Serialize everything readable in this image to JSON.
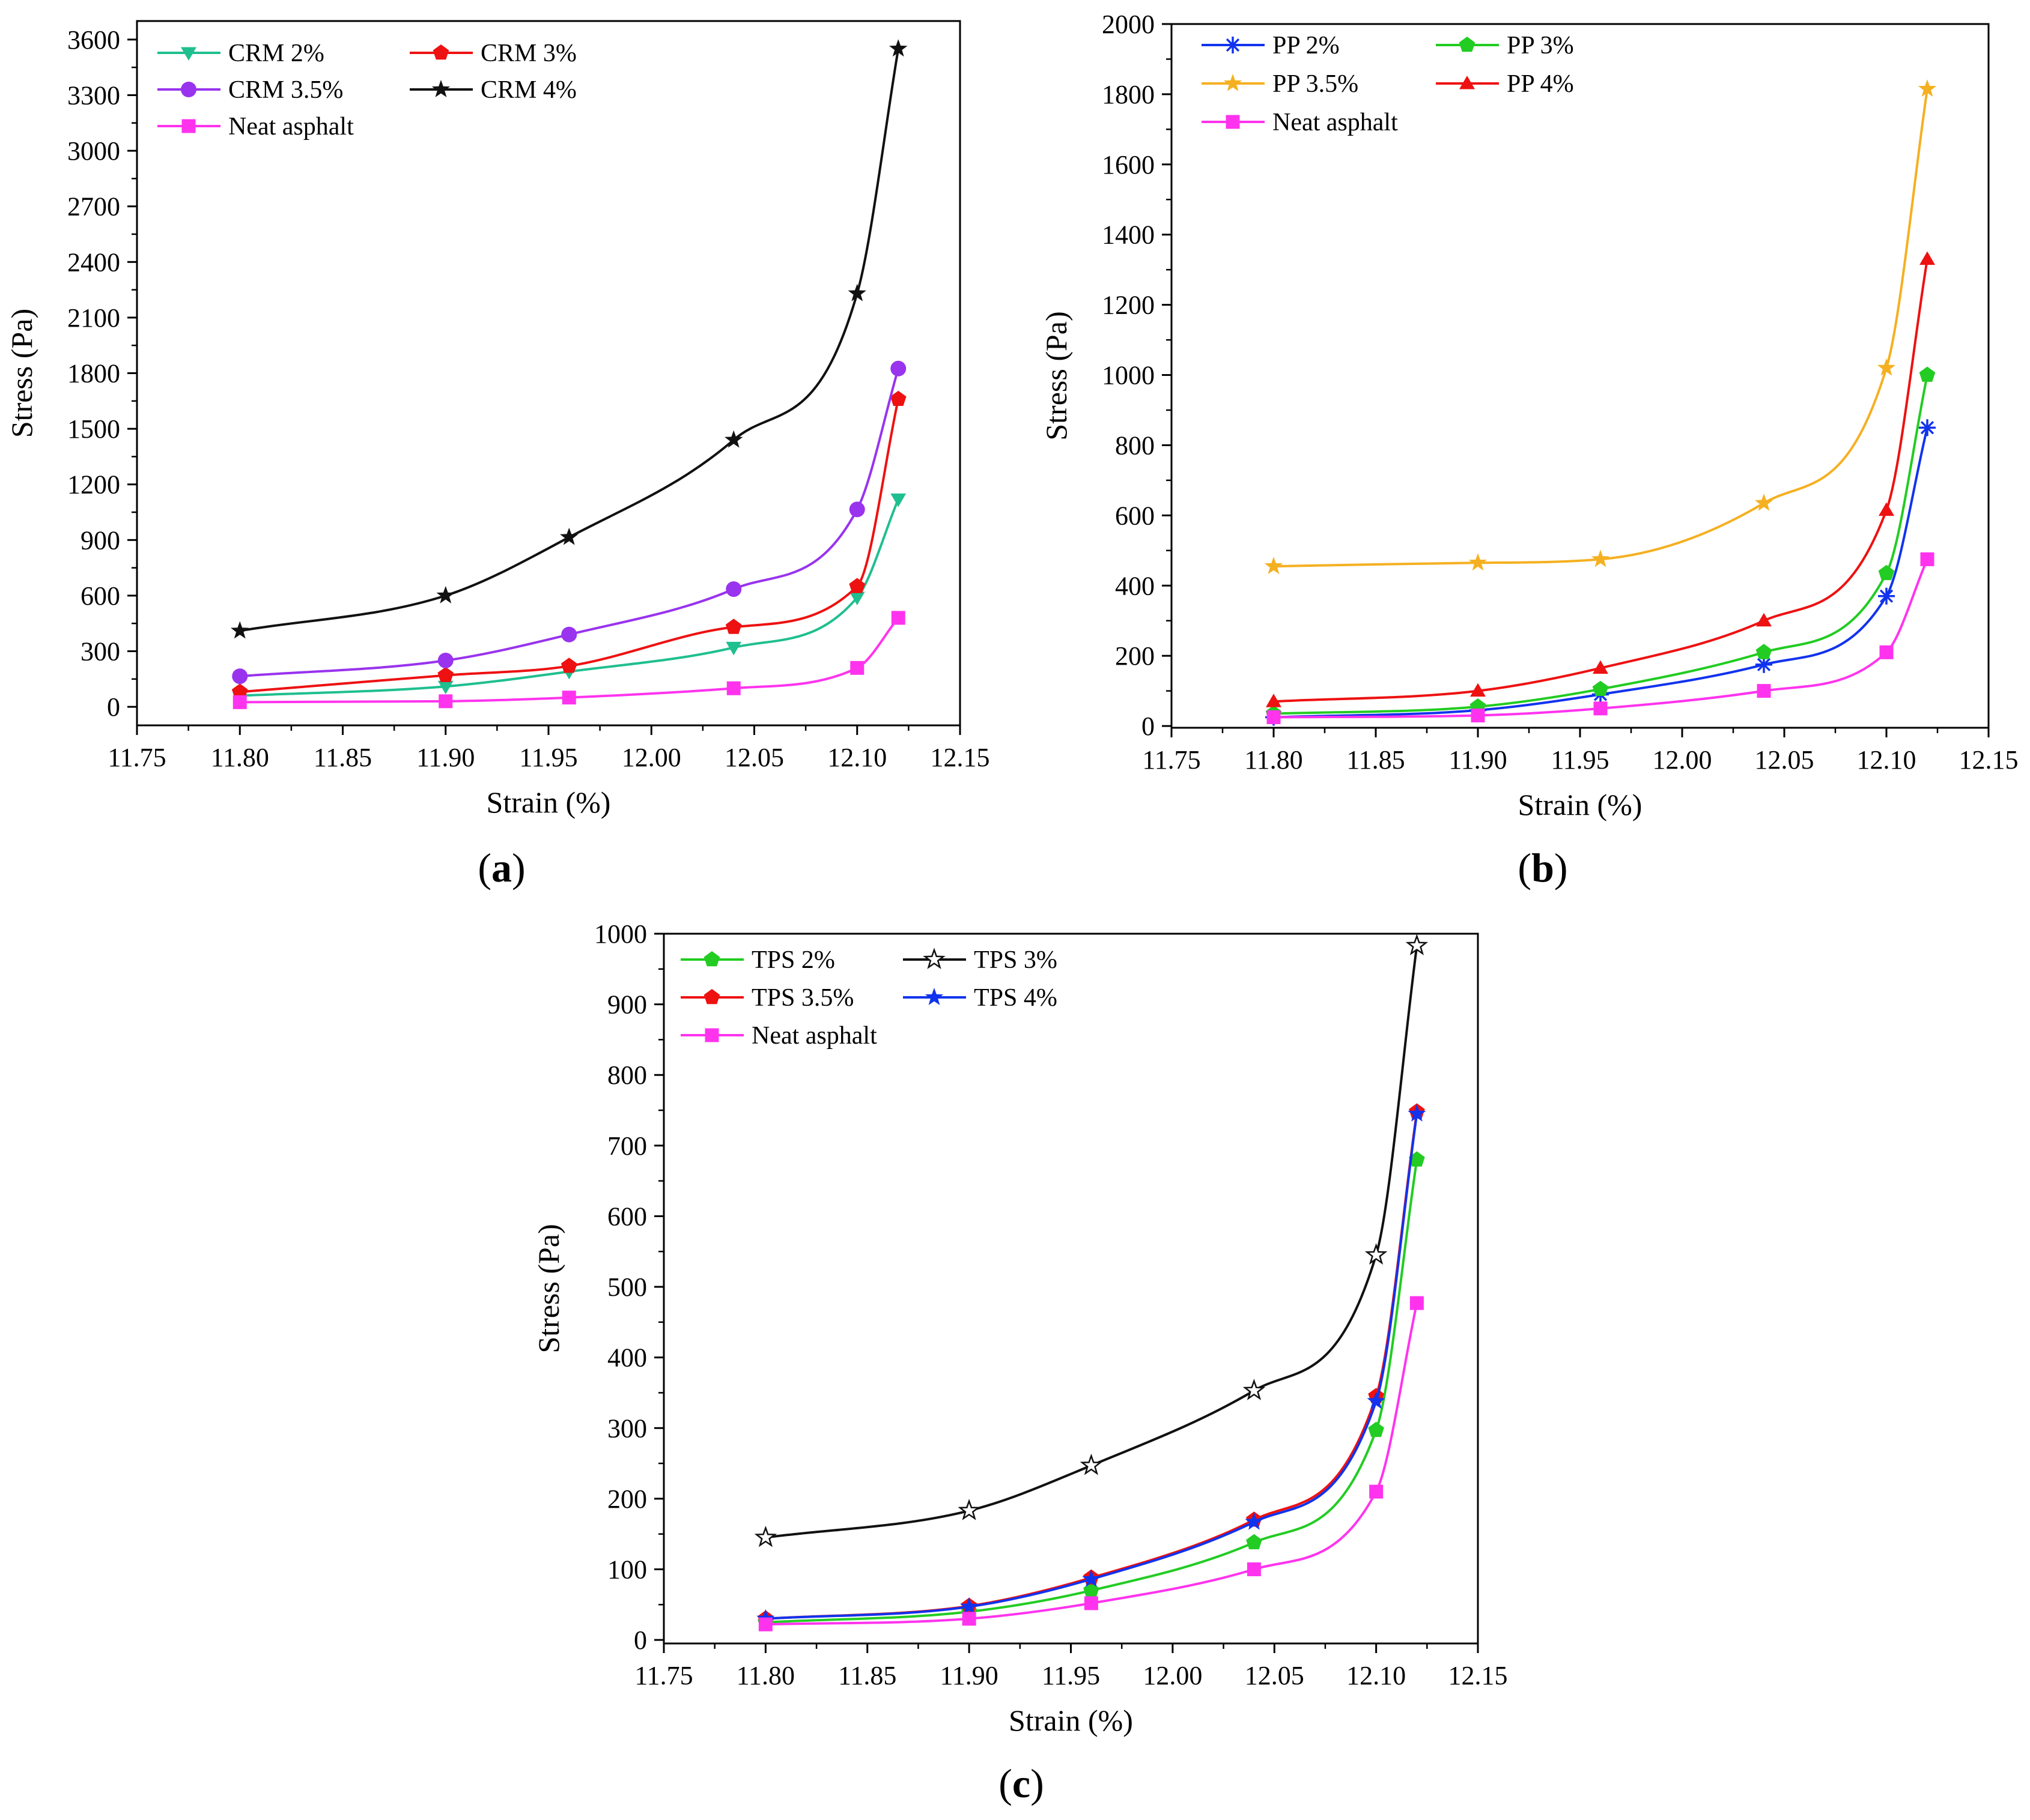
{
  "figure": {
    "panel_labels": [
      "a",
      "b",
      "c"
    ]
  },
  "chart_data": [
    {
      "type": "line",
      "panel": "a",
      "xlabel": "Strain (%)",
      "ylabel": "Stress (Pa)",
      "xlim": [
        11.75,
        12.15
      ],
      "ylim": [
        -100,
        3700
      ],
      "xticks": [
        11.75,
        11.8,
        11.85,
        11.9,
        11.95,
        12.0,
        12.05,
        12.1,
        12.15
      ],
      "xtick_labels": [
        "11.75",
        "11.80",
        "11.85",
        "11.90",
        "11.95",
        "12.00",
        "12.05",
        "12.10",
        "12.15"
      ],
      "yticks": [
        0,
        300,
        600,
        900,
        1200,
        1500,
        1800,
        2100,
        2400,
        2700,
        3000,
        3300,
        3600
      ],
      "ytick_labels": [
        "0",
        "300",
        "600",
        "900",
        "1200",
        "1500",
        "1800",
        "2100",
        "2400",
        "2700",
        "3000",
        "3300",
        "3600"
      ],
      "x": [
        11.8,
        11.9,
        11.96,
        12.04,
        12.1,
        12.12
      ],
      "legend_columns": 2,
      "series": [
        {
          "name": "CRM 2%",
          "color": "#1fbf8f",
          "marker": "triangle-down",
          "values": [
            60,
            110,
            190,
            320,
            590,
            1120
          ]
        },
        {
          "name": "CRM 3%",
          "color": "#ee1111",
          "marker": "pentagon",
          "values": [
            80,
            170,
            220,
            430,
            650,
            1660
          ]
        },
        {
          "name": "CRM 3.5%",
          "color": "#9933ee",
          "marker": "circle",
          "values": [
            165,
            250,
            390,
            635,
            1065,
            1825
          ]
        },
        {
          "name": "CRM 4%",
          "color": "#111111",
          "marker": "star",
          "values": [
            410,
            600,
            915,
            1440,
            2230,
            3550
          ]
        },
        {
          "name": "Neat asphalt",
          "color": "#ff33ee",
          "marker": "square",
          "values": [
            25,
            30,
            50,
            100,
            210,
            480
          ]
        }
      ]
    },
    {
      "type": "line",
      "panel": "b",
      "xlabel": "Strain (%)",
      "ylabel": "Stress (Pa)",
      "xlim": [
        11.75,
        12.15
      ],
      "ylim": [
        -5,
        2000
      ],
      "xticks": [
        11.75,
        11.8,
        11.85,
        11.9,
        11.95,
        12.0,
        12.05,
        12.1,
        12.15
      ],
      "xtick_labels": [
        "11.75",
        "11.80",
        "11.85",
        "11.90",
        "11.95",
        "12.00",
        "12.05",
        "12.10",
        "12.15"
      ],
      "yticks": [
        0,
        200,
        400,
        600,
        800,
        1000,
        1200,
        1400,
        1600,
        1800,
        2000
      ],
      "ytick_labels": [
        "0",
        "200",
        "400",
        "600",
        "800",
        "1000",
        "1200",
        "1400",
        "1600",
        "1800",
        "2000"
      ],
      "x": [
        11.8,
        11.9,
        11.96,
        12.04,
        12.1,
        12.12
      ],
      "legend_columns": 2,
      "series": [
        {
          "name": "PP 2%",
          "color": "#1133ee",
          "marker": "asterisk",
          "values": [
            25,
            45,
            90,
            175,
            370,
            850
          ]
        },
        {
          "name": "PP 3%",
          "color": "#22cc22",
          "marker": "pentagon",
          "values": [
            35,
            55,
            105,
            210,
            435,
            1000
          ]
        },
        {
          "name": "PP 3.5%",
          "color": "#f5b021",
          "marker": "star",
          "values": [
            455,
            465,
            475,
            635,
            1020,
            1815
          ]
        },
        {
          "name": "PP 4%",
          "color": "#ee1111",
          "marker": "triangle-up",
          "values": [
            70,
            100,
            165,
            300,
            615,
            1330
          ]
        },
        {
          "name": "Neat asphalt",
          "color": "#ff33ee",
          "marker": "square",
          "values": [
            25,
            30,
            50,
            100,
            210,
            475
          ]
        }
      ]
    },
    {
      "type": "line",
      "panel": "c",
      "xlabel": "Strain (%)",
      "ylabel": "Stress (Pa)",
      "xlim": [
        11.75,
        12.15
      ],
      "ylim": [
        -5,
        1000
      ],
      "xticks": [
        11.75,
        11.8,
        11.85,
        11.9,
        11.95,
        12.0,
        12.05,
        12.1,
        12.15
      ],
      "xtick_labels": [
        "11.75",
        "11.80",
        "11.85",
        "11.90",
        "11.95",
        "12.00",
        "12.05",
        "12.10",
        "12.15"
      ],
      "yticks": [
        0,
        100,
        200,
        300,
        400,
        500,
        600,
        700,
        800,
        900,
        1000
      ],
      "ytick_labels": [
        "0",
        "100",
        "200",
        "300",
        "400",
        "500",
        "600",
        "700",
        "800",
        "900",
        "1000"
      ],
      "x": [
        11.8,
        11.9,
        11.96,
        12.04,
        12.1,
        12.12
      ],
      "legend_columns": 2,
      "series": [
        {
          "name": "TPS 2%",
          "color": "#22cc22",
          "marker": "pentagon",
          "values": [
            25,
            40,
            70,
            138,
            297,
            680
          ]
        },
        {
          "name": "TPS 3%",
          "color": "#111111",
          "marker": "star-open",
          "values": [
            145,
            183,
            247,
            353,
            545,
            983
          ]
        },
        {
          "name": "TPS 3.5%",
          "color": "#ee1111",
          "marker": "pentagon",
          "values": [
            30,
            48,
            88,
            170,
            345,
            748
          ]
        },
        {
          "name": "TPS 4%",
          "color": "#1133ee",
          "marker": "star",
          "values": [
            30,
            47,
            86,
            167,
            338,
            745
          ]
        },
        {
          "name": "Neat asphalt",
          "color": "#ff33ee",
          "marker": "square",
          "values": [
            22,
            30,
            52,
            100,
            210,
            477
          ]
        }
      ]
    }
  ]
}
